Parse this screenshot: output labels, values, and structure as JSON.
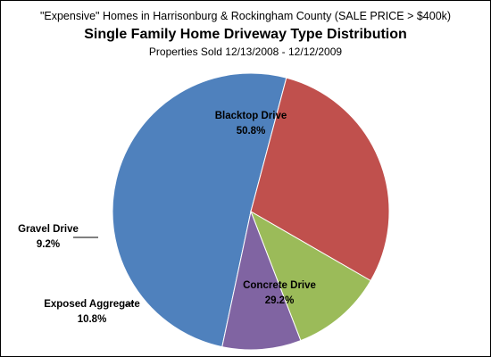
{
  "chart_data": {
    "type": "pie",
    "supertitle": "\"Expensive\" Homes in Harrisonburg & Rockingham  County (SALE PRICE > $400k)",
    "title": "Single Family Home Driveway Type Distribution",
    "subtitle": "Properties Sold 12/13/2008 - 12/12/2009",
    "slices": [
      {
        "label": "Blacktop Drive",
        "value": 50.8,
        "value_label": "50.8%",
        "color": "#4F81BD"
      },
      {
        "label": "Concrete Drive",
        "value": 29.2,
        "value_label": "29.2%",
        "color": "#C0504D"
      },
      {
        "label": "Exposed Aggregate",
        "value": 10.8,
        "value_label": "10.8%",
        "color": "#9BBB59"
      },
      {
        "label": "Gravel Drive",
        "value": 9.2,
        "value_label": "9.2%",
        "color": "#8064A2"
      }
    ]
  }
}
